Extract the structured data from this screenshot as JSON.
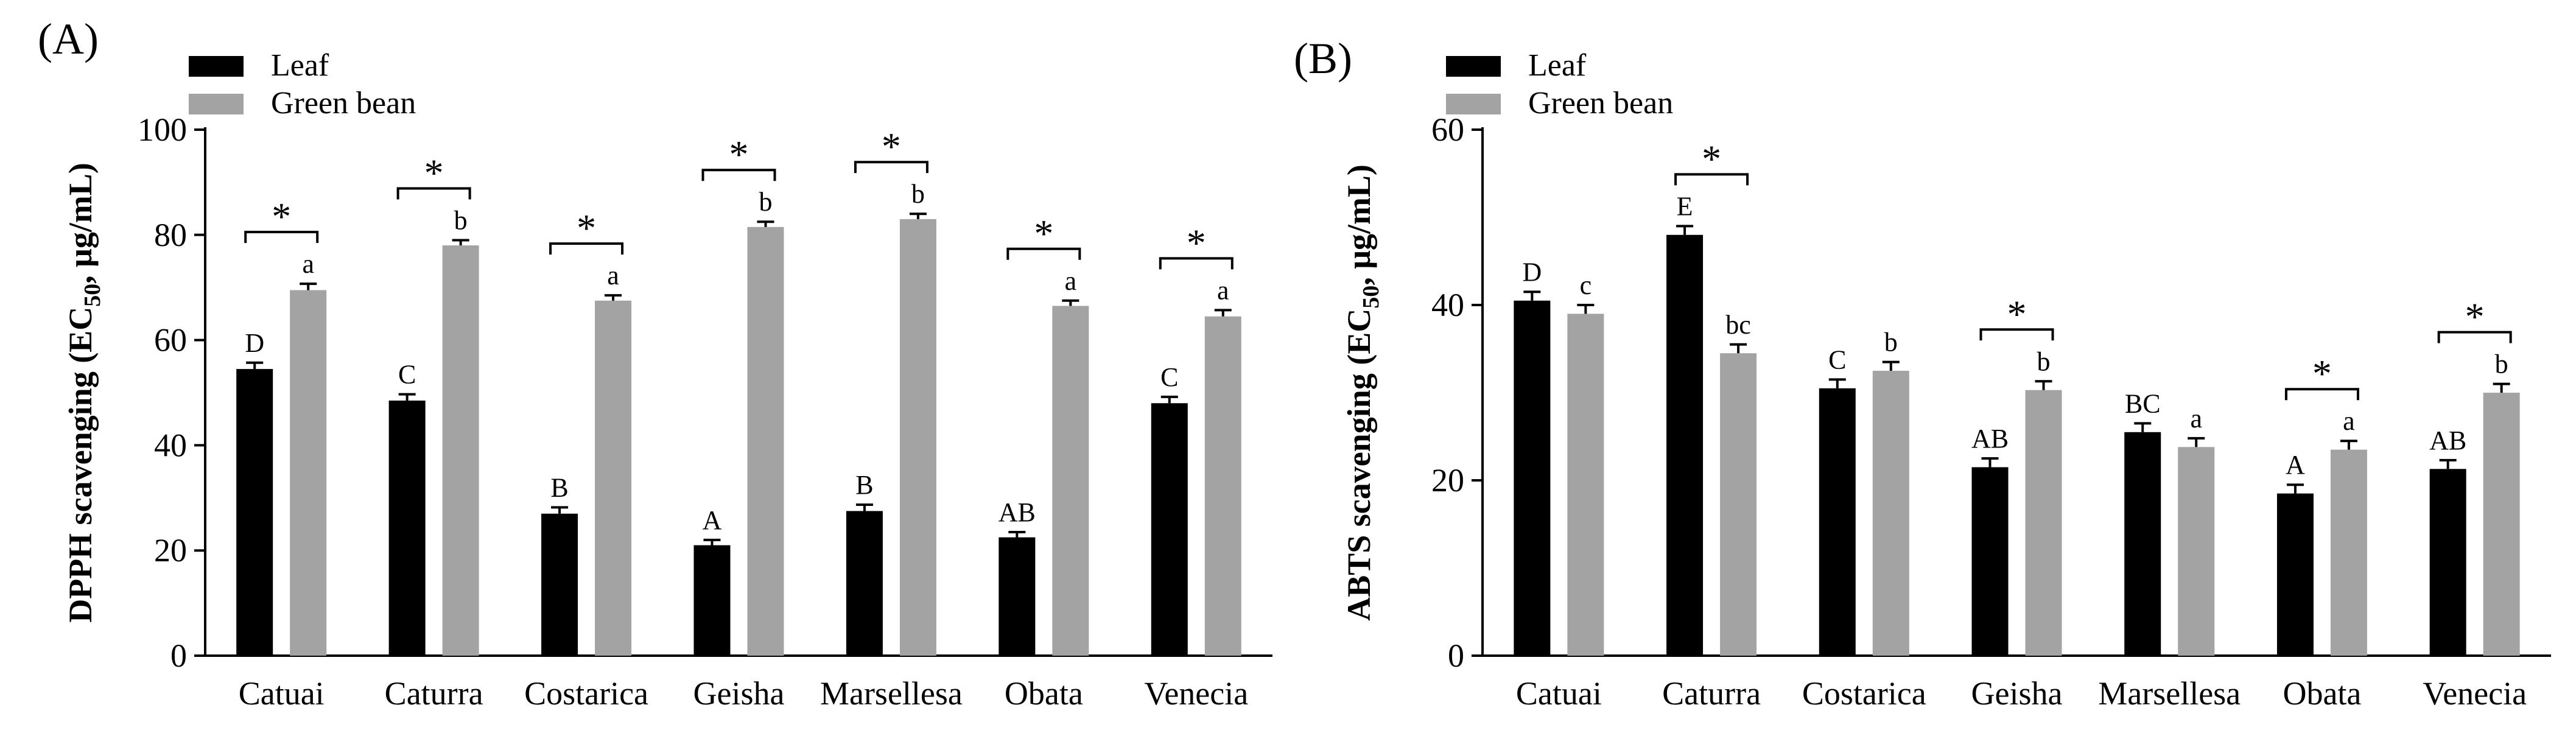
{
  "chart_data": [
    {
      "panel_label": "(A)",
      "type": "bar",
      "categories": [
        "Catuai",
        "Caturra",
        "Costarica",
        "Geisha",
        "Marsellesa",
        "Obata",
        "Venecia"
      ],
      "series": [
        {
          "name": "Leaf",
          "color": "#000000",
          "values": [
            54.5,
            48.5,
            27,
            21,
            27.5,
            22.5,
            48
          ],
          "errors": [
            1.2,
            1.2,
            1.2,
            1.0,
            1.2,
            1.0,
            1.2
          ],
          "letters": [
            "D",
            "C",
            "B",
            "A",
            "B",
            "AB",
            "C"
          ]
        },
        {
          "name": "Green bean",
          "color": "#a3a3a3",
          "values": [
            69.5,
            78,
            67.5,
            81.5,
            83,
            66.5,
            64.5
          ],
          "errors": [
            1.2,
            1.0,
            1.0,
            1.0,
            1.0,
            1.0,
            1.2
          ],
          "letters": [
            "a",
            "b",
            "a",
            "b",
            "b",
            "a",
            "a"
          ]
        }
      ],
      "significance": [
        "*",
        "*",
        "*",
        "*",
        "*",
        "*",
        "*"
      ],
      "ylabel_main": "DPPH scavenging (EC",
      "ylabel_sub": "50",
      "ylabel_unit": ", μg/mL)",
      "ylim": [
        0,
        100
      ],
      "yticks": [
        "0",
        "20",
        "40",
        "60",
        "80",
        "100"
      ],
      "legend": [
        "Leaf",
        "Green bean"
      ],
      "legend_position": "top-left"
    },
    {
      "panel_label": "(B)",
      "type": "bar",
      "categories": [
        "Catuai",
        "Caturra",
        "Costarica",
        "Geisha",
        "Marsellesa",
        "Obata",
        "Venecia"
      ],
      "series": [
        {
          "name": "Leaf",
          "color": "#000000",
          "values": [
            40.5,
            48,
            30.5,
            21.5,
            25.5,
            18.5,
            21.3
          ],
          "errors": [
            1.0,
            1.0,
            1.0,
            1.0,
            1.0,
            1.0,
            1.0
          ],
          "letters": [
            "D",
            "E",
            "C",
            "AB",
            "BC",
            "A",
            "AB"
          ]
        },
        {
          "name": "Green bean",
          "color": "#a3a3a3",
          "values": [
            39,
            34.5,
            32.5,
            30.3,
            23.8,
            23.5,
            30
          ],
          "errors": [
            1.0,
            1.0,
            1.0,
            1.0,
            1.0,
            1.0,
            1.0
          ],
          "letters": [
            "c",
            "bc",
            "b",
            "b",
            "a",
            "a",
            "b"
          ]
        }
      ],
      "significance": [
        "",
        "*",
        "",
        "*",
        "",
        "*",
        "*"
      ],
      "ylabel_main": "ABTS scavenging (EC",
      "ylabel_sub": "50",
      "ylabel_unit": ", μg/mL)",
      "ylim": [
        0,
        60
      ],
      "yticks": [
        "0",
        "20",
        "40",
        "60"
      ],
      "legend": [
        "Leaf",
        "Green bean"
      ],
      "legend_position": "top-left"
    }
  ]
}
